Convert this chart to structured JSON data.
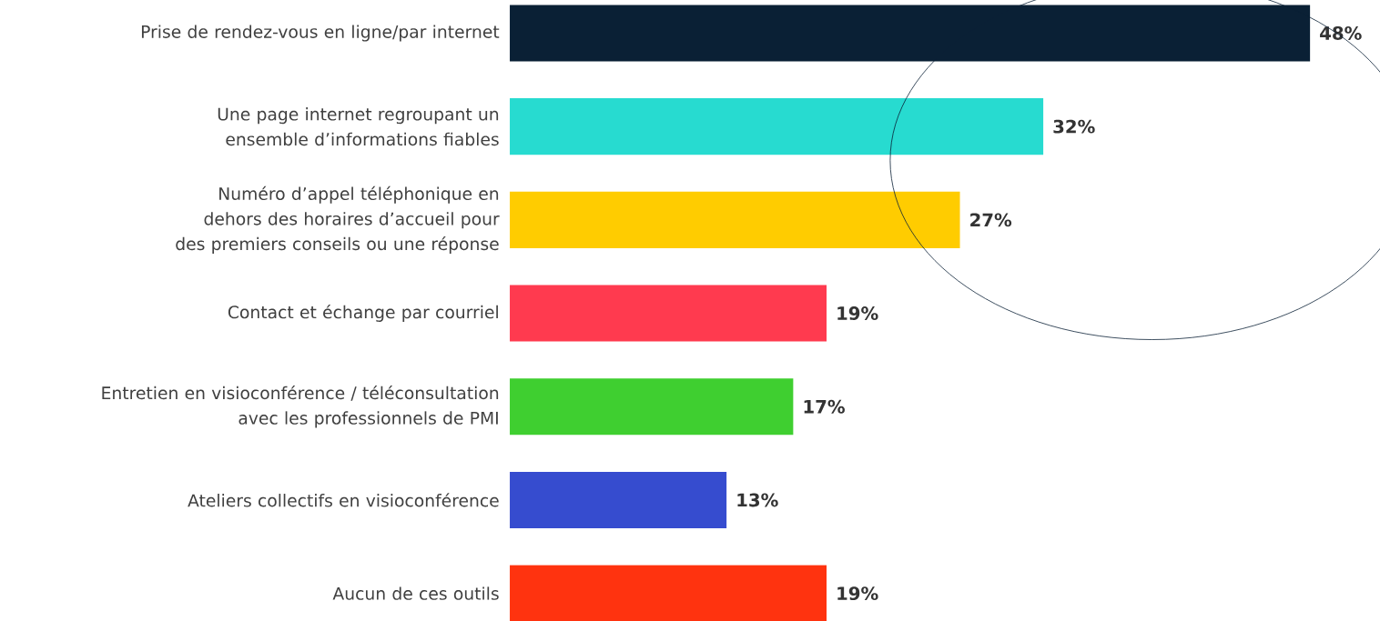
{
  "chart_data": {
    "type": "bar",
    "orientation": "horizontal",
    "categories": [
      "Prise de rendez-vous en ligne/par internet",
      "Une page internet regroupant un ensemble d’informations fiables",
      "Numéro d’appel téléphonique en dehors des horaires d’accueil pour des premiers conseils ou une réponse",
      "Contact et échange par courriel",
      "Entretien en visioconférence / téléconsultation avec les professionnels de PMI",
      "Ateliers collectifs en visioconférence",
      "Aucun de ces outils"
    ],
    "values": [
      48,
      32,
      27,
      19,
      17,
      13,
      19
    ],
    "value_labels": [
      "48%",
      "32%",
      "27%",
      "19%",
      "17%",
      "13%",
      "19%"
    ],
    "colors": [
      "#0a2035",
      "#27dbd0",
      "#ffcc00",
      "#ff3a4f",
      "#3fcf30",
      "#364ccf",
      "#ff330f"
    ]
  }
}
